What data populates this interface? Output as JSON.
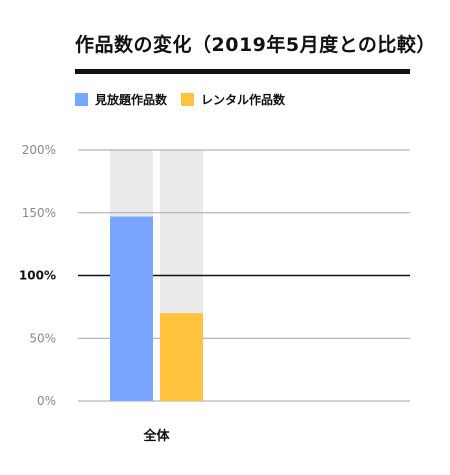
{
  "chart_data": {
    "type": "bar",
    "title": "作品数の変化（2019年5月度との比較）",
    "categories": [
      "全体"
    ],
    "series": [
      {
        "name": "見放題作品数",
        "color": "#78a6ff",
        "values": [
          147
        ]
      },
      {
        "name": "レンタル作品数",
        "color": "#ffc33d",
        "values": [
          70
        ]
      }
    ],
    "y_ticks": [
      "200%",
      "150%",
      "100%",
      "50%",
      "0%"
    ],
    "ylim": [
      0,
      200
    ],
    "y_tick_values": [
      200,
      150,
      100,
      50,
      0
    ],
    "reference_line": 100,
    "grid": true,
    "legend_position": "top-left",
    "bar_background_color": "#ebebeb",
    "xlabel": "",
    "ylabel": ""
  }
}
